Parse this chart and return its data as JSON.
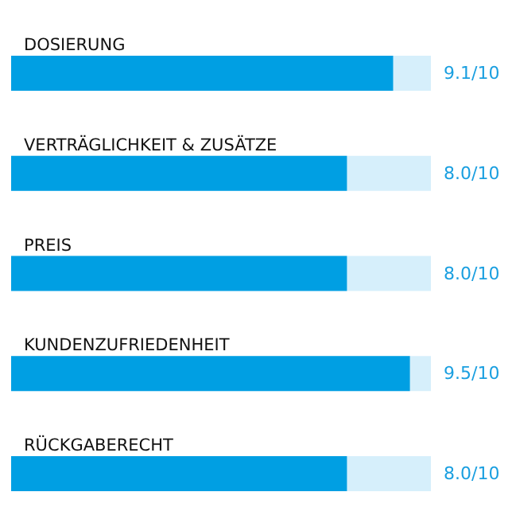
{
  "chart_data": {
    "type": "bar",
    "orientation": "horizontal",
    "categories": [
      "DOSIERUNG",
      "VERTRÄGLICHKEIT & ZUSÄTZE",
      "PREIS",
      "KUNDENZUFRIEDENHEIT",
      "RÜCKGABERECHT"
    ],
    "values": [
      0.91,
      0.8,
      0.8,
      0.95,
      0.8
    ],
    "color": "#009fe3",
    "xlim": [
      0,
      1
    ],
    "tick_labels": "y",
    "value_labels": [
      "9.1/10",
      "8.0/10",
      "8.0/10",
      "9.5/10",
      "8.0/10"
    ]
  }
}
